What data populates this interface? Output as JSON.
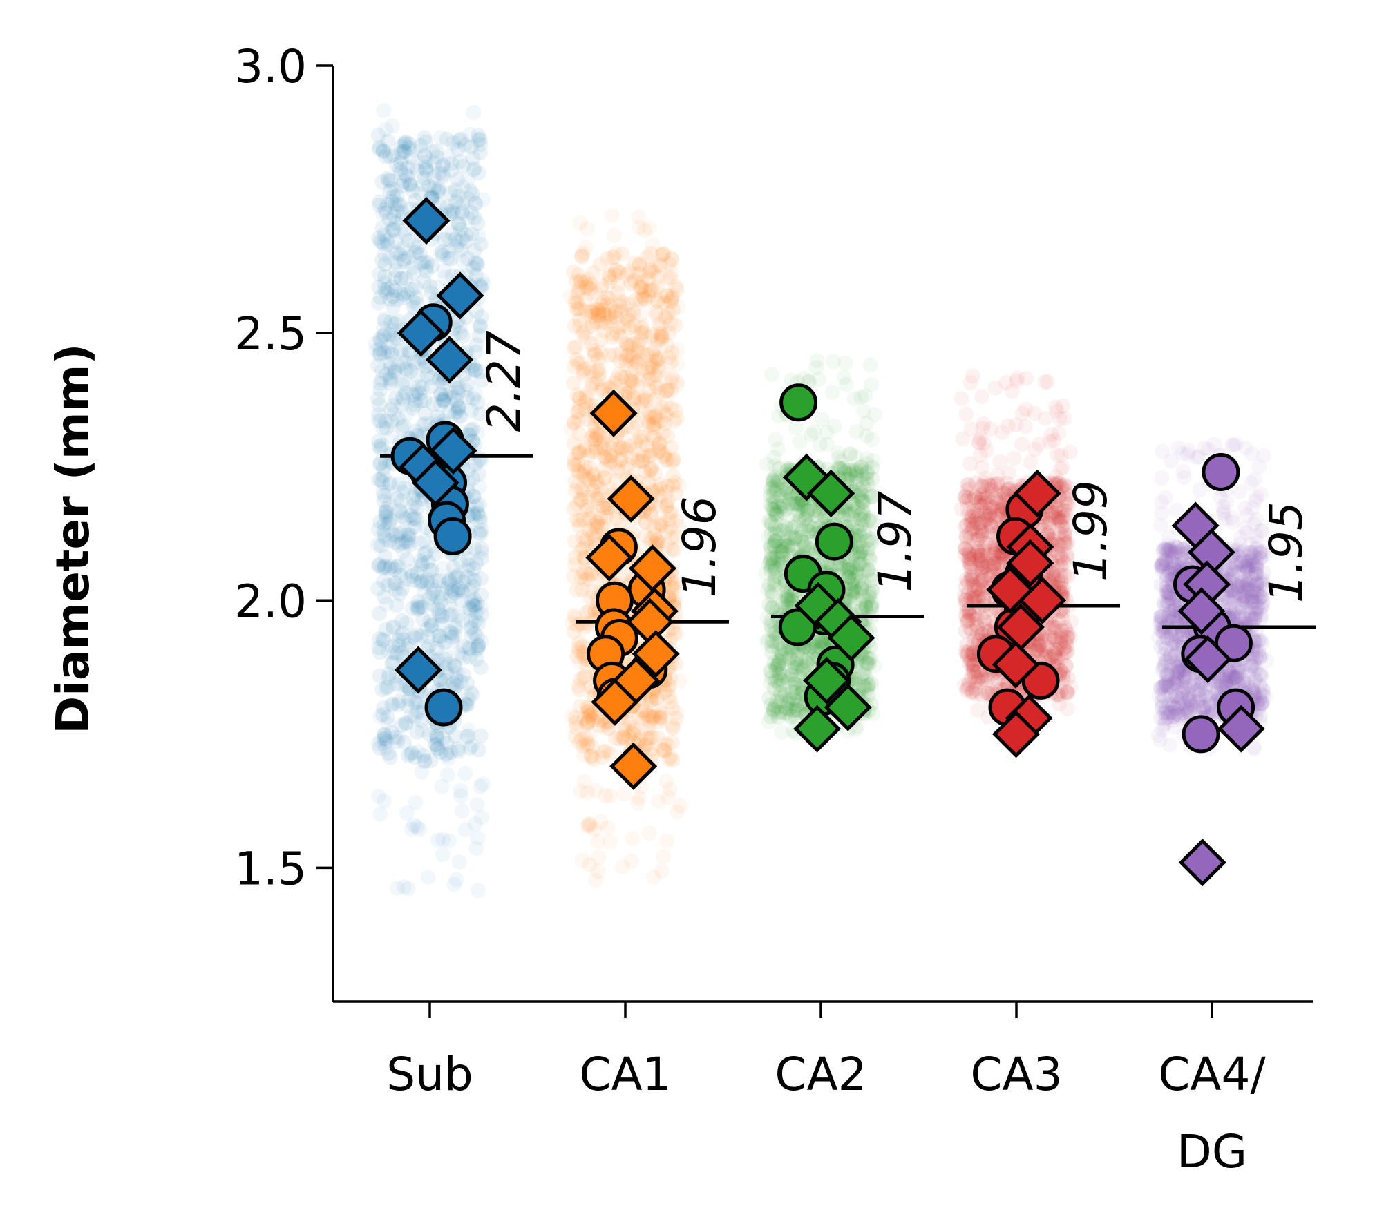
{
  "chart_data": {
    "type": "scatter",
    "title": "",
    "xlabel": "",
    "ylabel": "Diameter (mm)",
    "ylim": [
      1.25,
      3.0
    ],
    "yticks": [
      1.5,
      2.0,
      2.5,
      3.0
    ],
    "ytick_labels": [
      "1.5",
      "2.0",
      "2.5",
      "3.0"
    ],
    "grid": false,
    "categories": [
      {
        "label": "Sub",
        "label_line2": ""
      },
      {
        "label": "CA1",
        "label_line2": ""
      },
      {
        "label": "CA2",
        "label_line2": ""
      },
      {
        "label": "CA3",
        "label_line2": ""
      },
      {
        "label": "CA4/",
        "label_line2": "DG"
      }
    ],
    "series": [
      {
        "category": "Sub",
        "color": "#1f77b4",
        "mean": 2.27,
        "mean_label": "2.27",
        "cloud_range": [
          1.45,
          2.92
        ],
        "cloud_core": [
          1.7,
          2.87
        ],
        "circles": [
          2.52,
          2.3,
          2.27,
          2.24,
          2.22,
          2.18,
          2.15,
          2.12,
          1.8
        ],
        "diamonds": [
          2.71,
          2.57,
          2.5,
          2.45,
          2.28,
          2.25,
          2.22,
          1.87
        ]
      },
      {
        "category": "CA1",
        "color": "#ff7f0e",
        "mean": 1.96,
        "mean_label": "1.96",
        "cloud_range": [
          1.47,
          2.72
        ],
        "cloud_core": [
          1.7,
          2.65
        ],
        "circles": [
          2.1,
          2.02,
          2.0,
          1.95,
          1.93,
          1.9,
          1.87,
          1.85,
          1.82
        ],
        "diamonds": [
          2.35,
          2.19,
          2.08,
          2.06,
          1.98,
          1.96,
          1.9,
          1.85,
          1.81,
          1.69
        ]
      },
      {
        "category": "CA2",
        "color": "#2ca02c",
        "mean": 1.97,
        "mean_label": "1.97",
        "cloud_range": [
          1.75,
          2.45
        ],
        "cloud_core": [
          1.78,
          2.25
        ],
        "circles": [
          2.37,
          2.11,
          2.05,
          2.02,
          1.97,
          1.95,
          1.88,
          1.85,
          1.82
        ],
        "diamonds": [
          2.23,
          2.2,
          1.99,
          1.96,
          1.93,
          1.85,
          1.8,
          1.76
        ]
      },
      {
        "category": "CA3",
        "color": "#d62728",
        "mean": 1.99,
        "mean_label": "1.99",
        "cloud_range": [
          1.78,
          2.42
        ],
        "cloud_core": [
          1.82,
          2.22
        ],
        "circles": [
          2.17,
          2.12,
          2.05,
          2.02,
          1.98,
          1.95,
          1.9,
          1.85,
          1.8
        ],
        "diamonds": [
          2.2,
          2.1,
          2.07,
          2.02,
          2.0,
          1.95,
          1.88,
          1.78,
          1.75
        ]
      },
      {
        "category": "CA4/DG",
        "color": "#9467bd",
        "mean": 1.95,
        "mean_label": "1.95",
        "cloud_range": [
          1.72,
          2.3
        ],
        "cloud_core": [
          1.78,
          2.1
        ],
        "circles": [
          2.24,
          2.03,
          1.95,
          1.92,
          1.9,
          1.8,
          1.75
        ],
        "diamonds": [
          2.14,
          2.09,
          2.03,
          1.98,
          1.89,
          1.76,
          1.51
        ]
      }
    ]
  }
}
